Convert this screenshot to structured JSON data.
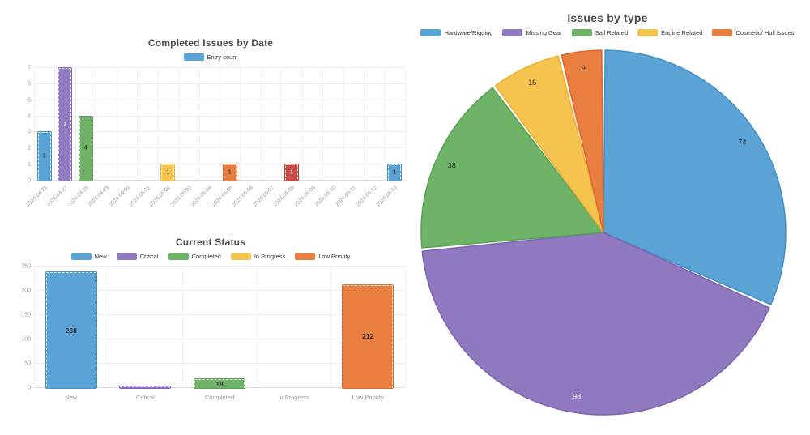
{
  "palette": {
    "blue": {
      "fill": "#5BA3D5",
      "border": "#4190C8"
    },
    "purple": {
      "fill": "#9179BF",
      "border": "#7E64B5"
    },
    "green": {
      "fill": "#6FB369",
      "border": "#56A356"
    },
    "yellow": {
      "fill": "#F4C44F",
      "border": "#EFAF33"
    },
    "orange": {
      "fill": "#E87F41",
      "border": "#E0662B"
    },
    "red": {
      "fill": "#C94A40",
      "border": "#BD382F"
    }
  },
  "chart_data": [
    {
      "id": "completed_by_date",
      "type": "bar",
      "title": "Completed Issues by Date",
      "legend": [
        {
          "label": "Entry count",
          "color": "#5BA3D5"
        }
      ],
      "legend_position": "top",
      "grid": true,
      "xlabel": "",
      "ylabel": "",
      "ylim": [
        0,
        7
      ],
      "yticks": [
        0,
        1,
        2,
        3,
        4,
        5,
        6,
        7
      ],
      "categories": [
        "2024-04-26",
        "2024-04-27",
        "2024-04-28",
        "2024-04-29",
        "2024-04-30",
        "2024-05-01",
        "2024-05-02",
        "2024-05-03",
        "2024-05-04",
        "2024-05-05",
        "2024-05-06",
        "2024-05-07",
        "2024-05-08",
        "2024-05-09",
        "2024-05-10",
        "2024-05-11",
        "2024-05-12",
        "2024-05-13"
      ],
      "values": [
        3,
        7,
        4,
        0,
        0,
        0,
        1,
        0,
        0,
        1,
        0,
        0,
        1,
        0,
        0,
        0,
        0,
        1
      ],
      "value_labels": [
        "3",
        "7",
        "4",
        "",
        "",
        "",
        "1",
        "",
        "",
        "1",
        "",
        "",
        "1",
        "",
        "",
        "",
        "",
        "1"
      ],
      "value_label_colors": [
        "#333333",
        "#ffffff",
        "#333333",
        "",
        "",
        "",
        "#333333",
        "",
        "",
        "#333333",
        "",
        "",
        "#ffffff",
        "",
        "",
        "",
        "",
        "#333333"
      ],
      "bar_colors": [
        "#5BA3D5",
        "#9179BF",
        "#6FB369",
        "",
        "",
        "",
        "#F4C44F",
        "",
        "",
        "#E87F41",
        "",
        "",
        "#C94A40",
        "",
        "",
        "",
        "",
        "#5BA3D5"
      ],
      "bar_borders": [
        "#4190C8",
        "#7E64B5",
        "#56A356",
        "",
        "",
        "",
        "#EFAF33",
        "",
        "",
        "#E0662B",
        "",
        "",
        "#BD382F",
        "",
        "",
        "",
        "",
        "#4190C8"
      ]
    },
    {
      "id": "current_status",
      "type": "bar",
      "title": "Current Status",
      "legend": [
        {
          "label": "New",
          "color": "#5BA3D5"
        },
        {
          "label": "Critical",
          "color": "#9179BF"
        },
        {
          "label": "Completed",
          "color": "#6FB369"
        },
        {
          "label": "In Progress",
          "color": "#F4C44F"
        },
        {
          "label": "Low Priority",
          "color": "#E87F41"
        }
      ],
      "legend_position": "top",
      "grid": true,
      "xlabel": "",
      "ylabel": "",
      "ylim": [
        0,
        250
      ],
      "yticks": [
        0,
        50,
        100,
        150,
        200,
        250
      ],
      "categories": [
        "New",
        "Critical",
        "Completed",
        "In Progress",
        "Low Priority"
      ],
      "values": [
        238,
        1,
        18,
        0,
        212
      ],
      "value_labels": [
        "238",
        "",
        "18",
        "",
        "212"
      ],
      "value_label_colors": [
        "#333333",
        "",
        "#333333",
        "",
        "#333333"
      ],
      "bar_colors": [
        "#5BA3D5",
        "#9179BF",
        "#6FB369",
        "",
        "#E87F41"
      ],
      "bar_borders": [
        "#4190C8",
        "#7E64B5",
        "#56A356",
        "",
        "#E0662B"
      ]
    },
    {
      "id": "issues_by_type",
      "type": "pie",
      "title": "Issues by type",
      "legend_position": "top",
      "labels": [
        "Hardware/Rigging",
        "Missing Gear",
        "Sail Related",
        "Engine Related",
        "Cosmetic/ Hull Issues"
      ],
      "values": [
        74,
        98,
        38,
        15,
        9
      ],
      "value_labels": [
        "74",
        "98",
        "38",
        "15",
        "9"
      ],
      "value_label_colors": [
        "#333333",
        "#ffffff",
        "#333333",
        "#333333",
        "#333333"
      ],
      "colors": [
        "#5BA3D5",
        "#9179BF",
        "#6FB369",
        "#F4C44F",
        "#E87F41"
      ],
      "borders": [
        "#4190C8",
        "#7E64B5",
        "#56A356",
        "#EFAF33",
        "#E0662B"
      ],
      "start_angle_deg": 0,
      "direction": "clockwise"
    }
  ]
}
